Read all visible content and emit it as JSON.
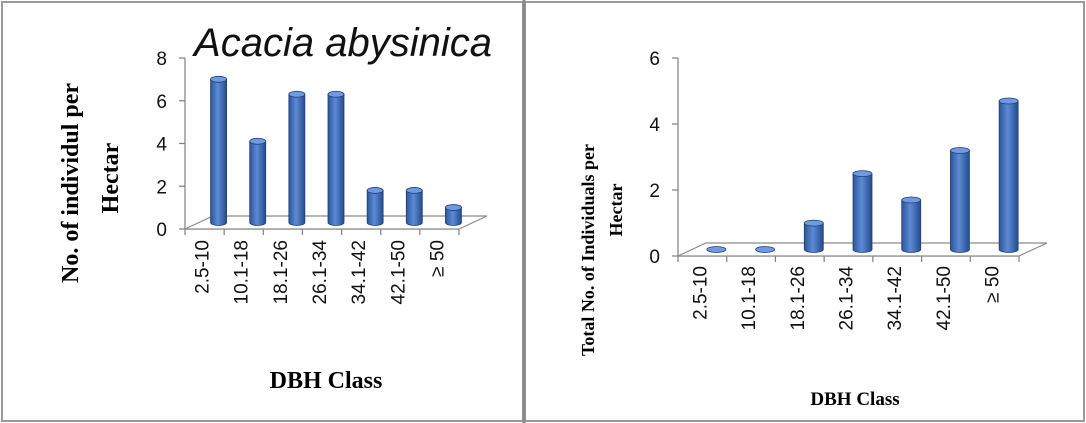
{
  "chart_data": [
    {
      "type": "bar",
      "title": "Acacia abysinica",
      "xlabel": "DBH Class",
      "ylabel_lines": [
        "No. of individul per",
        "Hectar"
      ],
      "categories": [
        "2.5-10",
        "10.1-18",
        "18.1-26",
        "26.1-34",
        "34.1-42",
        "42.1-50",
        "≥ 50"
      ],
      "values": [
        6.7,
        3.8,
        6.0,
        6.0,
        1.5,
        1.5,
        0.7
      ],
      "ylim": [
        0,
        8
      ],
      "yticks": [
        "0",
        "2",
        "4",
        "6",
        "8"
      ],
      "grid": false,
      "style": "3d-cylinder",
      "bar_color": "#4472C4"
    },
    {
      "type": "bar",
      "title": "",
      "xlabel": "DBH Class",
      "ylabel_lines": [
        "Total No. of Individuals per",
        "Hectar"
      ],
      "categories": [
        "2.5-10",
        "10.1-18",
        "18.1-26",
        "26.1-34",
        "34.1-42",
        "42.1-50",
        "≥ 50"
      ],
      "values": [
        0,
        0,
        0.8,
        2.3,
        1.5,
        3.0,
        4.5
      ],
      "ylim": [
        0,
        6
      ],
      "yticks": [
        "0",
        "2",
        "4",
        "6"
      ],
      "grid": false,
      "style": "3d-cylinder",
      "bar_color": "#4472C4"
    }
  ]
}
